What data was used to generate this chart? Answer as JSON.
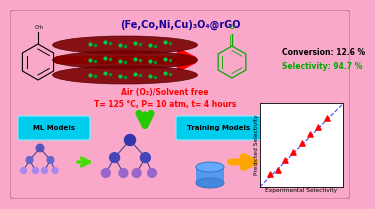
{
  "bg_color": "#F9A8C9",
  "title_text": "(Fe,Co,Ni,Cu)₃O₄@rGO",
  "title_color": "#1a0099",
  "title_fontsize": 7.0,
  "condition_line1": "Air (O₂)/Solvent free",
  "condition_line2": "T= 125 °C, P= 10 atm, t= 4 hours",
  "condition_color": "red",
  "condition_fontsize": 5.5,
  "conversion_text": "Conversion: 12.6 %",
  "conversion_color": "black",
  "conversion_fontsize": 5.5,
  "selectivity_text": "Selectivity: 94.7 %",
  "selectivity_color": "#00aa00",
  "selectivity_fontsize": 5.5,
  "ml_label": "ML Models",
  "training_label": "Training Models",
  "box_color": "#00ccee",
  "scatter_x": [
    0.12,
    0.22,
    0.3,
    0.4,
    0.5,
    0.6,
    0.7,
    0.8
  ],
  "scatter_y": [
    0.15,
    0.2,
    0.32,
    0.42,
    0.52,
    0.63,
    0.72,
    0.82
  ],
  "scatter_color": "red",
  "diag_color": "#4444ff",
  "plot_xlabel": "Experimental Selectivity",
  "plot_ylabel": "Predicted Selectivity",
  "plot_label_fontsize": 4.2,
  "plot_bg": "white",
  "node_colors": [
    "#4444bb",
    "#5544cc",
    "#5544cc",
    "#9966dd",
    "#9966dd",
    "#9966dd",
    "#9966dd",
    "#9966dd",
    "#9966dd",
    "#9966dd"
  ],
  "node_colors2": [
    "#3333aa",
    "#4444bb",
    "#4444bb",
    "#8855cc",
    "#8855cc",
    "#8855cc",
    "#8855cc",
    "#8855cc",
    "#8855cc",
    "#8855cc"
  ]
}
